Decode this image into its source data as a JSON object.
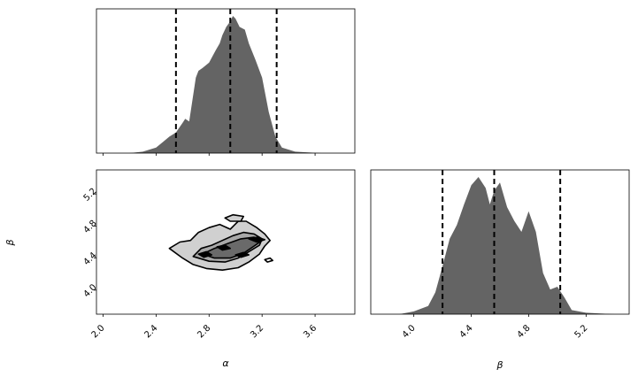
{
  "chart_data": {
    "type": "corner",
    "parameters": [
      "α",
      "β"
    ],
    "axis_labels": {
      "x_alpha": "α",
      "x_beta": "β",
      "y_beta": "β"
    },
    "alpha": {
      "range": [
        1.95,
        3.9
      ],
      "ticks": [
        "2.0",
        "2.4",
        "2.8",
        "3.2",
        "3.6"
      ],
      "tick_values": [
        2.0,
        2.4,
        2.8,
        3.2,
        3.6
      ],
      "quantile_lines": [
        2.55,
        2.96,
        3.31
      ],
      "histogram": {
        "x": [
          2.2,
          2.3,
          2.4,
          2.45,
          2.5,
          2.55,
          2.6,
          2.62,
          2.65,
          2.7,
          2.72,
          2.75,
          2.8,
          2.85,
          2.88,
          2.9,
          2.93,
          2.96,
          2.98,
          3.0,
          3.03,
          3.07,
          3.1,
          3.15,
          3.2,
          3.25,
          3.3,
          3.35,
          3.45,
          3.55,
          3.65
        ],
        "density": [
          0.0,
          0.01,
          0.04,
          0.08,
          0.12,
          0.15,
          0.22,
          0.25,
          0.23,
          0.55,
          0.6,
          0.62,
          0.66,
          0.75,
          0.8,
          0.86,
          0.92,
          0.96,
          1.0,
          0.98,
          0.92,
          0.9,
          0.8,
          0.68,
          0.55,
          0.3,
          0.12,
          0.04,
          0.01,
          0.005,
          0.0
        ]
      }
    },
    "beta": {
      "range": [
        3.7,
        5.5
      ],
      "ticks": [
        "4.0",
        "4.4",
        "4.8",
        "5.2"
      ],
      "tick_values": [
        4.0,
        4.4,
        4.8,
        5.2
      ],
      "quantile_lines": [
        4.2,
        4.56,
        5.02
      ],
      "histogram": {
        "x": [
          3.9,
          4.0,
          4.1,
          4.15,
          4.2,
          4.25,
          4.3,
          4.35,
          4.4,
          4.45,
          4.5,
          4.53,
          4.56,
          4.6,
          4.65,
          4.7,
          4.75,
          4.8,
          4.85,
          4.9,
          4.95,
          5.0,
          5.05,
          5.1,
          5.2,
          5.3,
          5.4
        ],
        "density": [
          0.0,
          0.02,
          0.06,
          0.16,
          0.35,
          0.55,
          0.65,
          0.8,
          0.94,
          1.0,
          0.92,
          0.8,
          0.9,
          0.96,
          0.78,
          0.68,
          0.6,
          0.75,
          0.6,
          0.3,
          0.18,
          0.2,
          0.12,
          0.03,
          0.01,
          0.005,
          0.0
        ]
      }
    },
    "contours_2d": {
      "levels": [
        {
          "fill": "#d0d0d0",
          "points": [
            [
              2.5,
              4.52
            ],
            [
              2.58,
              4.6
            ],
            [
              2.66,
              4.62
            ],
            [
              2.72,
              4.72
            ],
            [
              2.8,
              4.78
            ],
            [
              2.88,
              4.82
            ],
            [
              2.96,
              4.76
            ],
            [
              3.02,
              4.86
            ],
            [
              3.08,
              4.86
            ],
            [
              3.16,
              4.78
            ],
            [
              3.22,
              4.7
            ],
            [
              3.26,
              4.62
            ],
            [
              3.22,
              4.55
            ],
            [
              3.18,
              4.45
            ],
            [
              3.1,
              4.35
            ],
            [
              3.02,
              4.28
            ],
            [
              2.9,
              4.25
            ],
            [
              2.78,
              4.27
            ],
            [
              2.68,
              4.32
            ],
            [
              2.6,
              4.4
            ]
          ]
        },
        {
          "fill": "#a8a8a8",
          "points": [
            [
              2.68,
              4.42
            ],
            [
              2.74,
              4.52
            ],
            [
              2.82,
              4.56
            ],
            [
              2.9,
              4.62
            ],
            [
              2.98,
              4.68
            ],
            [
              3.06,
              4.72
            ],
            [
              3.14,
              4.7
            ],
            [
              3.2,
              4.64
            ],
            [
              3.18,
              4.56
            ],
            [
              3.1,
              4.48
            ],
            [
              3.02,
              4.4
            ],
            [
              2.92,
              4.35
            ],
            [
              2.8,
              4.36
            ]
          ]
        },
        {
          "fill": "#6a6a6a",
          "points": [
            [
              2.75,
              4.45
            ],
            [
              2.84,
              4.52
            ],
            [
              2.94,
              4.58
            ],
            [
              3.04,
              4.64
            ],
            [
              3.14,
              4.66
            ],
            [
              3.2,
              4.62
            ],
            [
              3.14,
              4.55
            ],
            [
              3.06,
              4.46
            ],
            [
              2.96,
              4.4
            ],
            [
              2.84,
              4.4
            ]
          ]
        },
        {
          "fill": "#000000",
          "points": [
            [
              3.1,
              4.64
            ],
            [
              3.16,
              4.66
            ],
            [
              3.22,
              4.63
            ],
            [
              3.16,
              4.6
            ]
          ]
        },
        {
          "fill": "#000000",
          "points": [
            [
              2.86,
              4.54
            ],
            [
              2.92,
              4.56
            ],
            [
              2.96,
              4.52
            ],
            [
              2.9,
              4.5
            ]
          ]
        },
        {
          "fill": "#000000",
          "points": [
            [
              2.72,
              4.45
            ],
            [
              2.78,
              4.48
            ],
            [
              2.82,
              4.44
            ],
            [
              2.76,
              4.41
            ]
          ]
        },
        {
          "fill": "#000000",
          "points": [
            [
              3.0,
              4.44
            ],
            [
              3.06,
              4.47
            ],
            [
              3.1,
              4.44
            ],
            [
              3.04,
              4.41
            ]
          ]
        }
      ],
      "outer_islands": [
        {
          "fill": "#d0d0d0",
          "points": [
            [
              2.92,
              4.9
            ],
            [
              2.98,
              4.94
            ],
            [
              3.06,
              4.92
            ],
            [
              3.04,
              4.86
            ],
            [
              2.96,
              4.86
            ]
          ]
        },
        {
          "fill": "#ffffff",
          "points": [
            [
              3.22,
              4.38
            ],
            [
              3.26,
              4.4
            ],
            [
              3.28,
              4.37
            ],
            [
              3.24,
              4.35
            ]
          ]
        }
      ]
    },
    "colors": {
      "fill": "#646464",
      "line": "#000000"
    }
  }
}
